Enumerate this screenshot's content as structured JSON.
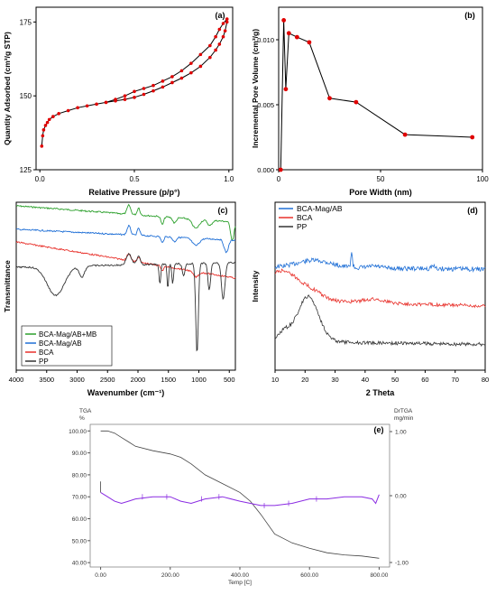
{
  "chart_data": [
    {
      "id": "a",
      "type": "line",
      "panel_label": "(a)",
      "xlabel": "Relative Pressure (p/p°)",
      "ylabel": "Quantity Adsorbed (cm³/g STP)",
      "xlim": [
        -0.02,
        1.02
      ],
      "ylim": [
        125,
        180
      ],
      "xticks": [
        0,
        0.5,
        1
      ],
      "xtick_labels": [
        "0.0",
        "0.5",
        "1.0"
      ],
      "yticks": [
        125,
        150,
        175
      ],
      "ytick_labels": [
        "125",
        "150",
        "175"
      ],
      "color": "#e00000",
      "series": [
        {
          "x": [
            0.01,
            0.015,
            0.02,
            0.03,
            0.04,
            0.05,
            0.07,
            0.1,
            0.15,
            0.2,
            0.25,
            0.3,
            0.35,
            0.4,
            0.45,
            0.5,
            0.55,
            0.6,
            0.65,
            0.7,
            0.75,
            0.8,
            0.85,
            0.9,
            0.93,
            0.95,
            0.97,
            0.98,
            0.99
          ],
          "y": [
            133,
            136.5,
            138.5,
            140,
            141,
            142,
            143,
            144,
            145,
            146,
            146.6,
            147.2,
            147.8,
            148.3,
            148.8,
            149.5,
            150.5,
            151.7,
            153,
            154.5,
            156,
            157.8,
            160,
            163,
            165.5,
            167.5,
            170,
            172,
            175
          ]
        },
        {
          "x": [
            0.99,
            0.97,
            0.95,
            0.93,
            0.9,
            0.85,
            0.8,
            0.75,
            0.7,
            0.65,
            0.6,
            0.55,
            0.5,
            0.45,
            0.4,
            0.35
          ],
          "y": [
            176,
            174.5,
            172.5,
            170,
            167,
            164,
            161,
            158.5,
            156.5,
            155,
            153.5,
            152.5,
            151.5,
            150,
            148.8,
            147.8
          ]
        }
      ]
    },
    {
      "id": "b",
      "type": "line",
      "panel_label": "(b)",
      "xlabel": "Pore Width (nm)",
      "ylabel": "Incremental Pore Volume (cm³/g)",
      "xlim": [
        0,
        100
      ],
      "ylim": [
        0,
        0.0125
      ],
      "xticks": [
        0,
        50,
        100
      ],
      "xtick_labels": [
        "0",
        "50",
        "100"
      ],
      "yticks": [
        0,
        0.005,
        0.01
      ],
      "ytick_labels": [
        "0.000",
        "0.005",
        "0.010"
      ],
      "color": "#e00000",
      "series": [
        {
          "x": [
            1,
            2.5,
            3.5,
            5,
            9,
            15,
            25,
            38,
            62,
            95
          ],
          "y": [
            0,
            0.0115,
            0.0062,
            0.0105,
            0.0102,
            0.0098,
            0.0055,
            0.0052,
            0.0027,
            0.0025
          ]
        }
      ]
    },
    {
      "id": "c",
      "type": "line",
      "panel_label": "(c)",
      "xlabel": "Wavenumber (cm⁻¹)",
      "ylabel": "Transmittance",
      "xlim": [
        4000,
        400
      ],
      "xticks": [
        4000,
        3500,
        3000,
        2500,
        2000,
        1500,
        1000,
        500
      ],
      "xtick_labels": [
        "4000",
        "3500",
        "3000",
        "2500",
        "2000",
        "1500",
        "1000",
        "500"
      ],
      "legend": [
        "BCA-Mag/AB+MB",
        "BCA-Mag/AB",
        "BCA",
        "PP"
      ],
      "colors": [
        "#2ca02c",
        "#1f6fd6",
        "#e8302a",
        "#333333"
      ]
    },
    {
      "id": "d",
      "type": "line",
      "panel_label": "(d)",
      "xlabel": "2 Theta",
      "ylabel": "Intensity",
      "xlim": [
        10,
        80
      ],
      "xticks": [
        10,
        20,
        30,
        40,
        50,
        60,
        70,
        80
      ],
      "xtick_labels": [
        "10",
        "20",
        "30",
        "40",
        "50",
        "60",
        "70",
        "80"
      ],
      "legend": [
        "BCA-Mag/AB",
        "BCA",
        "PP"
      ],
      "colors": [
        "#1f6fd6",
        "#e8302a",
        "#333333"
      ]
    },
    {
      "id": "e",
      "type": "line",
      "panel_label": "(e)",
      "xlabel": "Temp [C]",
      "left_axis_unit": "TGA\n%",
      "right_axis_unit": "DrTGA\nmg/min",
      "xlim": [
        -30,
        830
      ],
      "ylim": [
        38,
        103
      ],
      "xticks": [
        0,
        200,
        400,
        600,
        800
      ],
      "xtick_labels": [
        "0.00",
        "200.00",
        "400.00",
        "600.00",
        "800.00"
      ],
      "yticks": [
        40,
        50,
        60,
        70,
        80,
        90,
        100
      ],
      "ytick_labels": [
        "40.00",
        "50.00",
        "60.00",
        "70.00",
        "80.00",
        "90.00",
        "100.00"
      ],
      "right_ticks": [
        1.0,
        0.0,
        -1.0
      ],
      "right_tick_labels": [
        "1.00",
        "0.00",
        "-1.00"
      ],
      "colors": [
        "#444444",
        "#8a2be2"
      ],
      "tga": {
        "x": [
          0,
          20,
          40,
          60,
          80,
          100,
          150,
          200,
          230,
          260,
          300,
          350,
          400,
          430,
          460,
          500,
          550,
          600,
          650,
          700,
          750,
          800
        ],
        "y": [
          100,
          100,
          99,
          97,
          95,
          93,
          91,
          89.5,
          88,
          85,
          80,
          76,
          72,
          68,
          62,
          53,
          49,
          46.5,
          44.5,
          43.5,
          43,
          42
        ]
      },
      "dtga": {
        "x": [
          0,
          20,
          40,
          60,
          80,
          100,
          150,
          200,
          230,
          260,
          300,
          350,
          400,
          430,
          460,
          500,
          550,
          600,
          650,
          700,
          750,
          780,
          790,
          800
        ],
        "y": [
          72,
          70,
          68,
          67,
          68,
          69,
          70,
          70,
          68,
          67,
          69,
          70,
          68,
          67,
          66,
          66,
          67,
          69,
          69,
          70,
          70,
          69,
          67,
          71
        ]
      }
    }
  ]
}
